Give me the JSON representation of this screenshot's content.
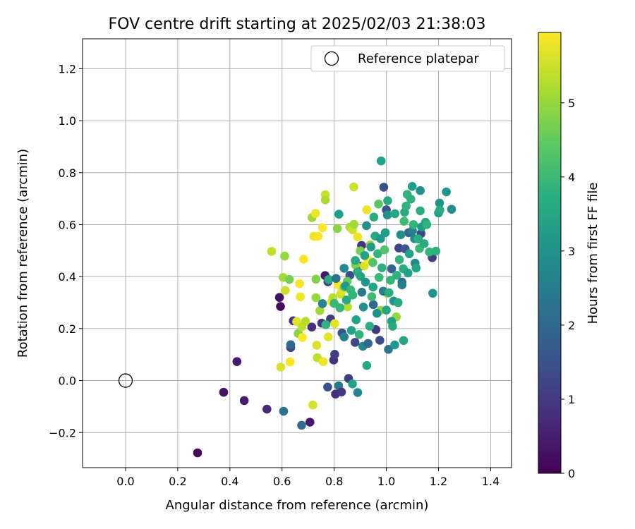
{
  "chart_data": {
    "type": "scatter",
    "title": "FOV centre drift starting at 2025/02/03 21:38:03",
    "xlabel": "Angular distance from reference (arcmin)",
    "ylabel": "Rotation from reference (arcmin)",
    "xlim": [
      -0.165,
      1.48
    ],
    "ylim": [
      -0.335,
      1.315
    ],
    "xticks": [
      0.0,
      0.2,
      0.4,
      0.6,
      0.8,
      1.0,
      1.2,
      1.4
    ],
    "xtick_labels": [
      "0.0",
      "0.2",
      "0.4",
      "0.6",
      "0.8",
      "1.0",
      "1.2",
      "1.4"
    ],
    "yticks": [
      -0.2,
      0.0,
      0.2,
      0.4,
      0.6,
      0.8,
      1.0,
      1.2
    ],
    "ytick_labels": [
      "−0.2",
      "0.0",
      "0.2",
      "0.4",
      "0.6",
      "0.8",
      "1.0",
      "1.2"
    ],
    "grid": true,
    "legend": {
      "placement": "top-right",
      "entries": [
        {
          "label": "Reference platepar",
          "marker": "open-circle"
        }
      ]
    },
    "reference_point": {
      "x": 0.0,
      "y": 0.0
    },
    "colorbar": {
      "label": "Hours from first FF file",
      "colormap": "viridis",
      "range": [
        0,
        5.95
      ],
      "ticks": [
        0,
        1,
        2,
        3,
        4,
        5
      ],
      "tick_labels": [
        "0",
        "1",
        "2",
        "3",
        "4",
        "5"
      ]
    },
    "series": [
      {
        "points": [
          {
            "x": 0.276,
            "y": -0.278,
            "c": 0.1
          },
          {
            "x": 0.376,
            "y": -0.045,
            "c": 0.3
          },
          {
            "x": 0.427,
            "y": 0.073,
            "c": 0.4
          },
          {
            "x": 0.455,
            "y": -0.077,
            "c": 0.5
          },
          {
            "x": 0.542,
            "y": -0.11,
            "c": 0.7
          },
          {
            "x": 0.59,
            "y": 0.32,
            "c": 0.3
          },
          {
            "x": 0.594,
            "y": 0.285,
            "c": 0.2
          },
          {
            "x": 0.606,
            "y": -0.118,
            "c": 2.2
          },
          {
            "x": 0.633,
            "y": 0.127,
            "c": 1.3
          },
          {
            "x": 0.633,
            "y": 0.138,
            "c": 2.0
          },
          {
            "x": 0.643,
            "y": 0.23,
            "c": 0.9
          },
          {
            "x": 0.675,
            "y": -0.172,
            "c": 2.1
          },
          {
            "x": 0.707,
            "y": -0.16,
            "c": 0.4
          },
          {
            "x": 0.714,
            "y": 0.206,
            "c": 0.8
          },
          {
            "x": 0.752,
            "y": 0.221,
            "c": 0.9
          },
          {
            "x": 0.765,
            "y": 0.404,
            "c": 0.4
          },
          {
            "x": 0.775,
            "y": -0.025,
            "c": 1.5
          },
          {
            "x": 0.776,
            "y": 0.38,
            "c": 1.2
          },
          {
            "x": 0.786,
            "y": 0.237,
            "c": 1.1
          },
          {
            "x": 0.798,
            "y": 0.079,
            "c": 0.9
          },
          {
            "x": 0.802,
            "y": 0.101,
            "c": 1.1
          },
          {
            "x": 0.805,
            "y": -0.052,
            "c": 0.8
          },
          {
            "x": 0.817,
            "y": -0.02,
            "c": 2.4
          },
          {
            "x": 0.828,
            "y": -0.044,
            "c": 1.0
          },
          {
            "x": 0.83,
            "y": 0.183,
            "c": 1.5
          },
          {
            "x": 0.838,
            "y": 0.168,
            "c": 2.6
          },
          {
            "x": 0.855,
            "y": 0.008,
            "c": 1.1
          },
          {
            "x": 0.86,
            "y": 0.405,
            "c": 1.4
          },
          {
            "x": 0.87,
            "y": -0.013,
            "c": 3.4
          },
          {
            "x": 0.88,
            "y": 0.147,
            "c": 1.2
          },
          {
            "x": 0.89,
            "y": -0.046,
            "c": 2.7
          },
          {
            "x": 0.9,
            "y": 0.44,
            "c": 1.0
          },
          {
            "x": 0.905,
            "y": 0.52,
            "c": 0.9
          },
          {
            "x": 0.91,
            "y": 0.132,
            "c": 2.7
          },
          {
            "x": 0.925,
            "y": 0.058,
            "c": 3.6
          },
          {
            "x": 0.93,
            "y": 0.143,
            "c": 2.0
          },
          {
            "x": 0.95,
            "y": 0.292,
            "c": 2.0
          },
          {
            "x": 0.96,
            "y": 0.196,
            "c": 1.0
          },
          {
            "x": 0.975,
            "y": 0.155,
            "c": 1.4
          },
          {
            "x": 0.98,
            "y": 0.845,
            "c": 3.4
          },
          {
            "x": 0.99,
            "y": 0.744,
            "c": 1.4
          },
          {
            "x": 1.0,
            "y": 0.657,
            "c": 1.5
          },
          {
            "x": 1.005,
            "y": 0.692,
            "c": 3.6
          },
          {
            "x": 1.008,
            "y": 0.12,
            "c": 2.3
          },
          {
            "x": 1.02,
            "y": 0.43,
            "c": 1.9
          },
          {
            "x": 1.032,
            "y": 0.137,
            "c": 3.2
          },
          {
            "x": 1.048,
            "y": 0.51,
            "c": 1.2
          },
          {
            "x": 1.06,
            "y": 0.379,
            "c": 2.1
          },
          {
            "x": 1.066,
            "y": 0.154,
            "c": 3.5
          },
          {
            "x": 1.072,
            "y": 0.507,
            "c": 1.6
          },
          {
            "x": 1.085,
            "y": 0.569,
            "c": 2.0
          },
          {
            "x": 1.099,
            "y": 0.747,
            "c": 3.3
          },
          {
            "x": 1.108,
            "y": 0.546,
            "c": 2.8
          },
          {
            "x": 1.13,
            "y": 0.731,
            "c": 3.0
          },
          {
            "x": 1.133,
            "y": 0.566,
            "c": 1.3
          },
          {
            "x": 1.15,
            "y": 0.609,
            "c": 3.5
          },
          {
            "x": 1.176,
            "y": 0.473,
            "c": 1.1
          },
          {
            "x": 1.178,
            "y": 0.336,
            "c": 3.1
          },
          {
            "x": 1.2,
            "y": 0.645,
            "c": 3.3
          },
          {
            "x": 1.204,
            "y": 0.683,
            "c": 3.0
          },
          {
            "x": 1.23,
            "y": 0.726,
            "c": 3.1
          },
          {
            "x": 1.25,
            "y": 0.659,
            "c": 2.9
          },
          {
            "x": 0.56,
            "y": 0.497,
            "c": 5.4
          },
          {
            "x": 0.595,
            "y": 0.052,
            "c": 5.6
          },
          {
            "x": 0.604,
            "y": 0.397,
            "c": 5.1
          },
          {
            "x": 0.61,
            "y": 0.479,
            "c": 5.0
          },
          {
            "x": 0.612,
            "y": 0.347,
            "c": 5.5
          },
          {
            "x": 0.628,
            "y": 0.389,
            "c": 4.7
          },
          {
            "x": 0.631,
            "y": 0.072,
            "c": 5.9
          },
          {
            "x": 0.656,
            "y": 0.227,
            "c": 5.7
          },
          {
            "x": 0.662,
            "y": 0.181,
            "c": 4.9
          },
          {
            "x": 0.667,
            "y": 0.373,
            "c": 5.9
          },
          {
            "x": 0.67,
            "y": 0.322,
            "c": 5.8
          },
          {
            "x": 0.676,
            "y": 0.207,
            "c": 5.4
          },
          {
            "x": 0.678,
            "y": 0.166,
            "c": 6.0
          },
          {
            "x": 0.683,
            "y": 0.467,
            "c": 5.9
          },
          {
            "x": 0.69,
            "y": 0.228,
            "c": 5.3
          },
          {
            "x": 0.715,
            "y": 0.627,
            "c": 5.1
          },
          {
            "x": 0.718,
            "y": -0.094,
            "c": 5.6
          },
          {
            "x": 0.722,
            "y": 0.555,
            "c": 5.8
          },
          {
            "x": 0.728,
            "y": 0.643,
            "c": 5.8
          },
          {
            "x": 0.73,
            "y": 0.319,
            "c": 5.0
          },
          {
            "x": 0.73,
            "y": 0.39,
            "c": 4.8
          },
          {
            "x": 0.733,
            "y": 0.136,
            "c": 5.6
          },
          {
            "x": 0.735,
            "y": 0.088,
            "c": 5.4
          },
          {
            "x": 0.738,
            "y": 0.555,
            "c": 5.9
          },
          {
            "x": 0.745,
            "y": 0.269,
            "c": 5.1
          },
          {
            "x": 0.755,
            "y": 0.588,
            "c": 6.0
          },
          {
            "x": 0.758,
            "y": 0.073,
            "c": 5.8
          },
          {
            "x": 0.766,
            "y": 0.715,
            "c": 5.5
          },
          {
            "x": 0.766,
            "y": 0.695,
            "c": 5.2
          },
          {
            "x": 0.777,
            "y": 0.168,
            "c": 5.7
          },
          {
            "x": 0.79,
            "y": 0.303,
            "c": 5.9
          },
          {
            "x": 0.795,
            "y": 0.319,
            "c": 5.3
          },
          {
            "x": 0.802,
            "y": 0.219,
            "c": 5.7
          },
          {
            "x": 0.812,
            "y": 0.585,
            "c": 4.9
          },
          {
            "x": 0.815,
            "y": 0.369,
            "c": 6.0
          },
          {
            "x": 0.825,
            "y": 0.333,
            "c": 5.5
          },
          {
            "x": 0.83,
            "y": 0.346,
            "c": 5.7
          },
          {
            "x": 0.838,
            "y": 0.36,
            "c": 4.6
          },
          {
            "x": 0.85,
            "y": 0.382,
            "c": 4.5
          },
          {
            "x": 0.851,
            "y": 0.284,
            "c": 5.3
          },
          {
            "x": 0.86,
            "y": 0.591,
            "c": 5.2
          },
          {
            "x": 0.87,
            "y": 0.58,
            "c": 5.5
          },
          {
            "x": 0.875,
            "y": 0.745,
            "c": 5.5
          },
          {
            "x": 0.876,
            "y": 0.601,
            "c": 5.1
          },
          {
            "x": 0.882,
            "y": 0.445,
            "c": 4.8
          },
          {
            "x": 0.89,
            "y": 0.553,
            "c": 5.8
          },
          {
            "x": 0.9,
            "y": 0.499,
            "c": 4.7
          },
          {
            "x": 0.915,
            "y": 0.441,
            "c": 5.6
          },
          {
            "x": 0.925,
            "y": 0.657,
            "c": 5.8
          },
          {
            "x": 0.93,
            "y": 0.465,
            "c": 6.0
          },
          {
            "x": 0.938,
            "y": 0.522,
            "c": 5.1
          },
          {
            "x": 0.948,
            "y": 0.454,
            "c": 4.3
          },
          {
            "x": 0.97,
            "y": 0.679,
            "c": 4.4
          },
          {
            "x": 0.978,
            "y": 0.27,
            "c": 5.0
          },
          {
            "x": 1.003,
            "y": 0.336,
            "c": 5.0
          },
          {
            "x": 1.038,
            "y": 0.245,
            "c": 5.0
          },
          {
            "x": 0.755,
            "y": 0.296,
            "c": 2.6
          },
          {
            "x": 0.768,
            "y": 0.215,
            "c": 3.8
          },
          {
            "x": 0.779,
            "y": 0.389,
            "c": 3.6
          },
          {
            "x": 0.8,
            "y": 0.297,
            "c": 4.0
          },
          {
            "x": 0.807,
            "y": 0.393,
            "c": 2.3
          },
          {
            "x": 0.818,
            "y": 0.64,
            "c": 3.3
          },
          {
            "x": 0.822,
            "y": 0.28,
            "c": 4.0
          },
          {
            "x": 0.838,
            "y": 0.432,
            "c": 2.8
          },
          {
            "x": 0.843,
            "y": 0.364,
            "c": 3.2
          },
          {
            "x": 0.847,
            "y": 0.31,
            "c": 3.6
          },
          {
            "x": 0.863,
            "y": 0.349,
            "c": 4.0
          },
          {
            "x": 0.866,
            "y": 0.193,
            "c": 3.4
          },
          {
            "x": 0.871,
            "y": 0.329,
            "c": 3.9
          },
          {
            "x": 0.881,
            "y": 0.462,
            "c": 3.6
          },
          {
            "x": 0.884,
            "y": 0.234,
            "c": 3.4
          },
          {
            "x": 0.889,
            "y": 0.418,
            "c": 3.7
          },
          {
            "x": 0.896,
            "y": 0.177,
            "c": 3.9
          },
          {
            "x": 0.901,
            "y": 0.401,
            "c": 3.5
          },
          {
            "x": 0.906,
            "y": 0.34,
            "c": 2.4
          },
          {
            "x": 0.912,
            "y": 0.283,
            "c": 3.0
          },
          {
            "x": 0.917,
            "y": 0.481,
            "c": 3.4
          },
          {
            "x": 0.92,
            "y": 0.379,
            "c": 3.1
          },
          {
            "x": 0.924,
            "y": 0.596,
            "c": 3.0
          },
          {
            "x": 0.936,
            "y": 0.209,
            "c": 3.7
          },
          {
            "x": 0.941,
            "y": 0.514,
            "c": 3.2
          },
          {
            "x": 0.944,
            "y": 0.323,
            "c": 4.1
          },
          {
            "x": 0.949,
            "y": 0.36,
            "c": 3.5
          },
          {
            "x": 0.952,
            "y": 0.629,
            "c": 3.7
          },
          {
            "x": 0.957,
            "y": 0.556,
            "c": 3.6
          },
          {
            "x": 0.964,
            "y": 0.259,
            "c": 3.0
          },
          {
            "x": 0.967,
            "y": 0.488,
            "c": 3.9
          },
          {
            "x": 0.972,
            "y": 0.397,
            "c": 4.0
          },
          {
            "x": 0.978,
            "y": 0.546,
            "c": 3.2
          },
          {
            "x": 0.983,
            "y": 0.434,
            "c": 3.8
          },
          {
            "x": 0.988,
            "y": 0.344,
            "c": 2.5
          },
          {
            "x": 0.993,
            "y": 0.503,
            "c": 4.3
          },
          {
            "x": 0.996,
            "y": 0.569,
            "c": 3.3
          },
          {
            "x": 1.0,
            "y": 0.271,
            "c": 3.5
          },
          {
            "x": 1.004,
            "y": 0.637,
            "c": 3.0
          },
          {
            "x": 1.01,
            "y": 0.338,
            "c": 3.7
          },
          {
            "x": 1.016,
            "y": 0.386,
            "c": 3.9
          },
          {
            "x": 1.02,
            "y": 0.228,
            "c": 3.3
          },
          {
            "x": 1.024,
            "y": 0.209,
            "c": 3.6
          },
          {
            "x": 1.028,
            "y": 0.306,
            "c": 3.1
          },
          {
            "x": 1.033,
            "y": 0.642,
            "c": 3.5
          },
          {
            "x": 1.04,
            "y": 0.405,
            "c": 3.8
          },
          {
            "x": 1.045,
            "y": 0.3,
            "c": 3.6
          },
          {
            "x": 1.05,
            "y": 0.465,
            "c": 3.9
          },
          {
            "x": 1.055,
            "y": 0.561,
            "c": 2.9
          },
          {
            "x": 1.06,
            "y": 0.368,
            "c": 2.6
          },
          {
            "x": 1.065,
            "y": 0.43,
            "c": 3.7
          },
          {
            "x": 1.068,
            "y": 0.613,
            "c": 4.1
          },
          {
            "x": 1.07,
            "y": 0.648,
            "c": 3.6
          },
          {
            "x": 1.076,
            "y": 0.671,
            "c": 3.8
          },
          {
            "x": 1.08,
            "y": 0.716,
            "c": 3.9
          },
          {
            "x": 1.083,
            "y": 0.414,
            "c": 3.4
          },
          {
            "x": 1.088,
            "y": 0.488,
            "c": 3.4
          },
          {
            "x": 1.094,
            "y": 0.698,
            "c": 3.8
          },
          {
            "x": 1.1,
            "y": 0.577,
            "c": 2.6
          },
          {
            "x": 1.104,
            "y": 0.6,
            "c": 3.9
          },
          {
            "x": 1.11,
            "y": 0.452,
            "c": 2.8
          },
          {
            "x": 1.114,
            "y": 0.433,
            "c": 3.5
          },
          {
            "x": 1.122,
            "y": 0.545,
            "c": 3.7
          },
          {
            "x": 1.127,
            "y": 0.508,
            "c": 4.0
          },
          {
            "x": 1.13,
            "y": 0.653,
            "c": 3.7
          },
          {
            "x": 1.135,
            "y": 0.591,
            "c": 3.3
          },
          {
            "x": 1.145,
            "y": 0.527,
            "c": 3.6
          },
          {
            "x": 1.155,
            "y": 0.6,
            "c": 3.8
          },
          {
            "x": 1.165,
            "y": 0.495,
            "c": 3.9
          },
          {
            "x": 1.19,
            "y": 0.498,
            "c": 3.8
          },
          {
            "x": 1.205,
            "y": 0.656,
            "c": 3.6
          }
        ]
      }
    ]
  }
}
